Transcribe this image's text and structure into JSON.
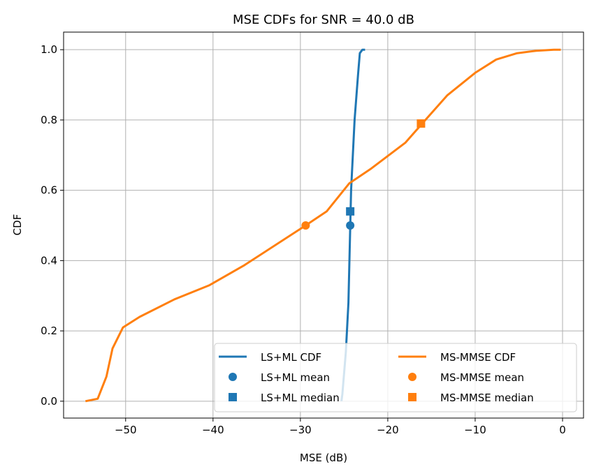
{
  "chart_data": {
    "type": "line",
    "title": "MSE CDFs for SNR = 40.0 dB",
    "xlabel": "MSE (dB)",
    "ylabel": "CDF",
    "xlim": [
      -57.1,
      2.4
    ],
    "ylim": [
      -0.048,
      1.05
    ],
    "xticks": [
      -50,
      -40,
      -30,
      -20,
      -10,
      0
    ],
    "xtick_labels": [
      "−50",
      "−40",
      "−30",
      "−20",
      "−10",
      "0"
    ],
    "yticks": [
      0,
      0.2,
      0.4,
      0.6,
      0.8,
      1.0
    ],
    "ytick_labels": [
      "0.0",
      "0.2",
      "0.4",
      "0.6",
      "0.8",
      "1.0"
    ],
    "grid": true,
    "legend_placement": "lower-right",
    "series": [
      {
        "name": "LS+ML CDF",
        "kind": "line",
        "color": "#1f77b4",
        "x": [
          -25.3,
          -25.2,
          -24.8,
          -24.5,
          -24.3,
          -24.2,
          -23.8,
          -23.4,
          -23.2,
          -22.9,
          -22.6
        ],
        "y": [
          0.0,
          0.02,
          0.14,
          0.28,
          0.49,
          0.6,
          0.8,
          0.93,
          0.99,
          1.0,
          1.0
        ]
      },
      {
        "name": "MS-MMSE CDF",
        "kind": "line",
        "color": "#ff7f0e",
        "x": [
          -54.6,
          -53.2,
          -52.2,
          -51.5,
          -50.3,
          -48.4,
          -44.4,
          -40.4,
          -36.4,
          -29.4,
          -27,
          -24.4,
          -22,
          -18,
          -15.8,
          -13.2,
          -10,
          -7.6,
          -5.2,
          -3,
          -1,
          -0.2
        ],
        "y": [
          0.0,
          0.007,
          0.07,
          0.15,
          0.21,
          0.24,
          0.29,
          0.33,
          0.387,
          0.5,
          0.54,
          0.62,
          0.66,
          0.735,
          0.797,
          0.87,
          0.934,
          0.972,
          0.99,
          0.997,
          1.0,
          1.0
        ]
      },
      {
        "name": "LS+ML mean",
        "kind": "circle",
        "color": "#1f77b4",
        "x": [
          -24.3
        ],
        "y": [
          0.5
        ]
      },
      {
        "name": "LS+ML median",
        "kind": "square",
        "color": "#1f77b4",
        "x": [
          -24.3
        ],
        "y": [
          0.54
        ]
      },
      {
        "name": "MS-MMSE mean",
        "kind": "circle",
        "color": "#ff7f0e",
        "x": [
          -29.4
        ],
        "y": [
          0.5
        ]
      },
      {
        "name": "MS-MMSE median",
        "kind": "square",
        "color": "#ff7f0e",
        "x": [
          -16.2
        ],
        "y": [
          0.79
        ]
      }
    ]
  }
}
